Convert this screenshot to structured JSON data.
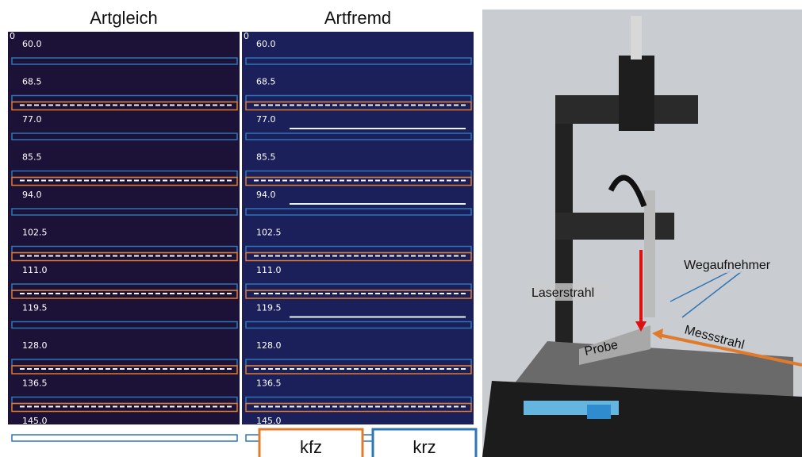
{
  "panels": [
    {
      "title": "Artgleich",
      "corner": "0",
      "labels": [
        "60.0",
        "68.5",
        "77.0",
        "85.5",
        "94.0",
        "102.5",
        "111.0",
        "119.5",
        "128.0",
        "136.5",
        "145.0"
      ]
    },
    {
      "title": "Artfremd",
      "corner": "0",
      "labels": [
        "60.0",
        "68.5",
        "77.0",
        "85.5",
        "94.0",
        "102.5",
        "111.0",
        "119.5",
        "128.0",
        "136.5",
        "145.0"
      ]
    }
  ],
  "legend": [
    {
      "label": "kfz",
      "color": "#e07b2c"
    },
    {
      "label": "krz",
      "color": "#2e75b6"
    }
  ],
  "render": {
    "sensor": "Wegaufnehmer",
    "laser": "Laserstrahl",
    "measure": "Messstrahl",
    "sample": "Probe"
  }
}
